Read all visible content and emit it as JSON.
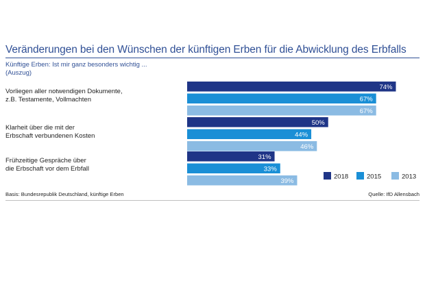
{
  "chart_data": {
    "type": "bar",
    "orientation": "horizontal",
    "title": "Veränderungen bei den Wünschen der künftigen Erben für die Abwicklung des Erbfalls",
    "subtitle": [
      "Künftige Erben: Ist mir ganz besonders wichtig ...",
      "(Auszug)"
    ],
    "categories": [
      [
        "Vorliegen aller notwendigen Dokumente,",
        "z.B. Testamente, Vollmachten"
      ],
      [
        "Klarheit über die mit der",
        "Erbschaft verbundenen Kosten"
      ],
      [
        "Frühzeitige Gespräche über",
        "die Erbschaft vor dem Erbfall"
      ]
    ],
    "series": [
      {
        "name": "2018",
        "values": [
          74,
          50,
          31
        ],
        "color": "#1f3587"
      },
      {
        "name": "2015",
        "values": [
          67,
          44,
          33
        ],
        "color": "#1a8fd6"
      },
      {
        "name": "2013",
        "values": [
          67,
          46,
          39
        ],
        "color": "#8bbbe3"
      }
    ],
    "value_suffix": "%",
    "legend_position": "bottom-right",
    "grid": false
  },
  "footer": {
    "basis": "Basis: Bundesrepublik Deutschland, künftige Erben",
    "source": "Quelle: IfD Allensbach"
  }
}
